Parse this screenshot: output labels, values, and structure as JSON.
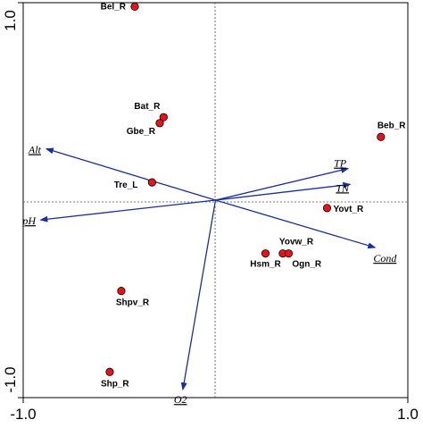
{
  "chart_data": {
    "type": "scatter",
    "subtype": "ordination-biplot",
    "title": "",
    "xlabel": "",
    "ylabel": "",
    "xlim": [
      -1.0,
      1.0
    ],
    "ylim": [
      -1.0,
      1.0
    ],
    "x_tick_labels": [
      {
        "value": -1.0,
        "label": "-1.0"
      },
      {
        "value": 1.0,
        "label": "1.0"
      }
    ],
    "y_tick_labels": [
      {
        "value": 1.0,
        "label": "1.0"
      },
      {
        "value": -1.0,
        "label": "-1.0"
      }
    ],
    "zero_lines": "dotted",
    "grid": false,
    "legend": "none",
    "colors": {
      "point_fill": "#e8141b",
      "arrow": "#1a2f99"
    },
    "sites": [
      {
        "name": "Bel_R",
        "x": -0.42,
        "y": 0.98
      },
      {
        "name": "Bat_R",
        "x": -0.27,
        "y": 0.42
      },
      {
        "name": "Gbe_R",
        "x": -0.29,
        "y": 0.39
      },
      {
        "name": "Beb_R",
        "x": 0.86,
        "y": 0.32
      },
      {
        "name": "Tre_L",
        "x": -0.33,
        "y": 0.09
      },
      {
        "name": "Yovt_R",
        "x": 0.58,
        "y": -0.04
      },
      {
        "name": "Yovw_R",
        "x": 0.35,
        "y": -0.27
      },
      {
        "name": "Hsm_R",
        "x": 0.26,
        "y": -0.27
      },
      {
        "name": "Ogn_R",
        "x": 0.38,
        "y": -0.27
      },
      {
        "name": "Shpv_R",
        "x": -0.49,
        "y": -0.46
      },
      {
        "name": "Shp_R",
        "x": -0.55,
        "y": -0.87
      }
    ],
    "variables": [
      {
        "name": "Alt",
        "x": -0.88,
        "y": 0.26
      },
      {
        "name": "pH",
        "x": -0.91,
        "y": -0.1
      },
      {
        "name": "TP",
        "x": 0.69,
        "y": 0.16
      },
      {
        "name": "TN",
        "x": 0.7,
        "y": 0.08
      },
      {
        "name": "Cond",
        "x": 0.83,
        "y": -0.24
      },
      {
        "name": "O2",
        "x": -0.17,
        "y": -0.96
      }
    ]
  }
}
